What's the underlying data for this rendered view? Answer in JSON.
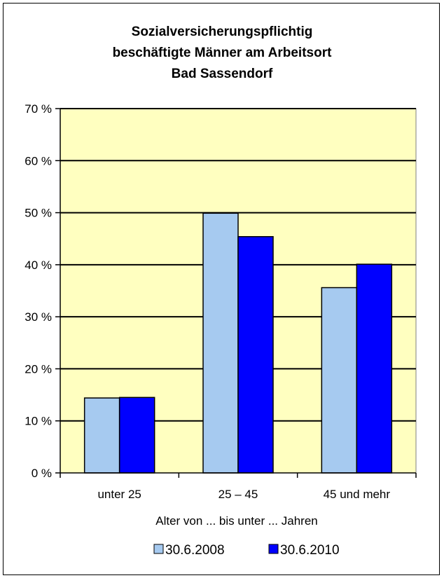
{
  "chart_data": {
    "type": "bar",
    "title_lines": [
      "Sozialversicherungspflichtig",
      "beschäftigte Männer am Arbeitsort",
      "Bad Sassendorf"
    ],
    "xlabel": "Alter von ... bis unter ... Jahren",
    "ylabel": "",
    "ylim": [
      0,
      70
    ],
    "yticks": [
      0,
      10,
      20,
      30,
      40,
      50,
      60,
      70
    ],
    "ytick_labels": [
      "0 %",
      "10 %",
      "20 %",
      "30 %",
      "40 %",
      "50 %",
      "60 %",
      "70 %"
    ],
    "grid": true,
    "legend_position": "bottom",
    "plot_background": "#ffffc0",
    "categories": [
      "unter 25",
      "25 – 45",
      "45 und mehr"
    ],
    "series": [
      {
        "name": "30.6.2008",
        "color": "#a6caf0",
        "values": [
          14.4,
          49.9,
          35.6
        ]
      },
      {
        "name": "30.6.2010",
        "color": "#0000ff",
        "values": [
          14.5,
          45.4,
          40.1
        ]
      }
    ]
  }
}
